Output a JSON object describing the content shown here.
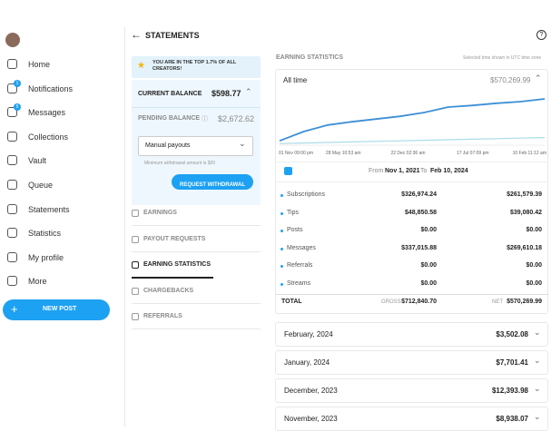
{
  "sidebar": {
    "nav": [
      {
        "label": "Home"
      },
      {
        "label": "Notifications",
        "badge": "1"
      },
      {
        "label": "Messages",
        "badge": "5"
      },
      {
        "label": "Collections"
      },
      {
        "label": "Vault"
      },
      {
        "label": "Queue"
      },
      {
        "label": "Statements"
      },
      {
        "label": "Statistics"
      },
      {
        "label": "My profile"
      },
      {
        "label": "More"
      }
    ],
    "new_post": "NEW POST"
  },
  "header": {
    "title": "STATEMENTS"
  },
  "balance_panel": {
    "banner": "YOU ARE IN THE TOP 1.7% OF ALL CREATORS!",
    "current_balance_label": "CURRENT BALANCE",
    "current_balance": "$598.77",
    "pending_balance_label": "PENDING BALANCE",
    "pending_balance": "$2,672.62",
    "payout_method": "Manual payouts",
    "minimum_note": "Minimum withdrawal amount is $20",
    "withdraw_button": "REQUEST WITHDRAWAL"
  },
  "menu": [
    {
      "label": "EARNINGS"
    },
    {
      "label": "PAYOUT REQUESTS"
    },
    {
      "label": "EARNING STATISTICS",
      "active": true
    },
    {
      "label": "CHARGEBACKS"
    },
    {
      "label": "REFERRALS"
    }
  ],
  "stats": {
    "title": "EARNING STATISTICS",
    "timezone_note": "Selected time shown in UTC time zone",
    "period": "All time",
    "period_total": "$570,269.99",
    "chart": {
      "type": "line",
      "x_labels": [
        "01 Nov 09:00 pm",
        "28 May 10:53 am",
        "22 Dec 02:36 am",
        "17 Jul 07:09 pm",
        "10 Feb 11:12 am"
      ],
      "ylim": [
        0,
        100
      ],
      "series": [
        {
          "color": "#3d8fd6",
          "values": [
            8,
            25,
            37,
            43,
            48,
            53,
            60,
            70,
            73,
            77,
            80,
            85
          ]
        },
        {
          "color": "#a9dbe8",
          "values": [
            3,
            4,
            5,
            6,
            7,
            8,
            9,
            10,
            11,
            12,
            13,
            14
          ]
        }
      ]
    },
    "from_label": "From",
    "from": "Nov 1, 2021",
    "to_label": "To",
    "to": "Feb 10, 2024",
    "rows": [
      {
        "label": "Subscriptions",
        "gross": "$326,974.24",
        "net": "$261,579.39"
      },
      {
        "label": "Tips",
        "gross": "$48,850.58",
        "net": "$39,080.42"
      },
      {
        "label": "Posts",
        "gross": "$0.00",
        "net": "$0.00"
      },
      {
        "label": "Messages",
        "gross": "$337,015.88",
        "net": "$269,610.18"
      },
      {
        "label": "Referrals",
        "gross": "$0.00",
        "net": "$0.00"
      },
      {
        "label": "Streams",
        "gross": "$0.00",
        "net": "$0.00"
      }
    ],
    "total": {
      "label": "TOTAL",
      "gross_label": "GROSS",
      "gross": "$712,840.70",
      "net_label": "NET",
      "net": "$570,269.99"
    },
    "months": [
      {
        "label": "February, 2024",
        "amount": "$3,502.08"
      },
      {
        "label": "January, 2024",
        "amount": "$7,701.41"
      },
      {
        "label": "December, 2023",
        "amount": "$12,393.98"
      },
      {
        "label": "November, 2023",
        "amount": "$8,938.07"
      }
    ]
  }
}
